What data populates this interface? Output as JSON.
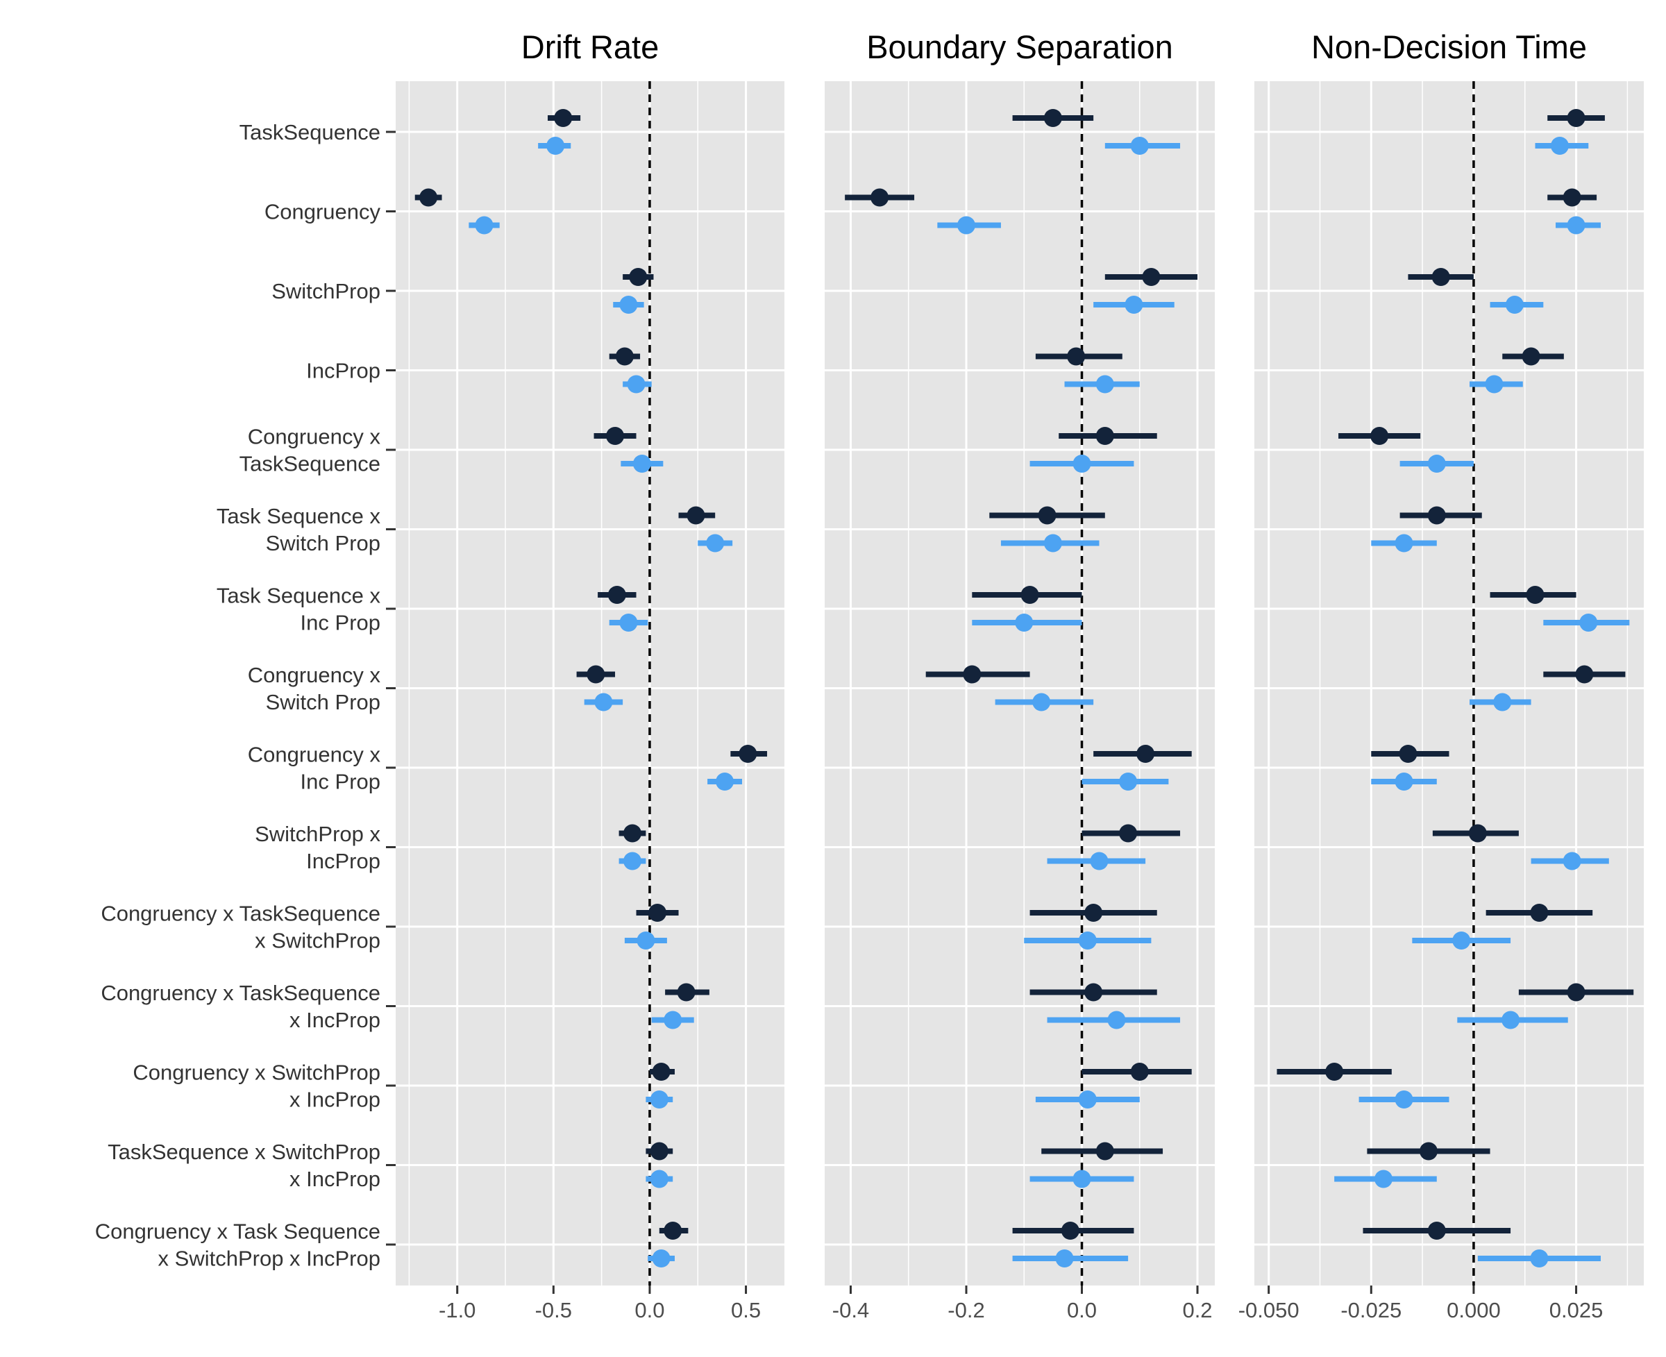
{
  "colors": {
    "dark_series": "#13233a",
    "light_series": "#4da3f2",
    "panel_background": "#e5e5e5",
    "grid_line": "#ffffff",
    "zero_line": "#000000"
  },
  "chart_data": {
    "type": "forest",
    "terms": [
      [
        "TaskSequence"
      ],
      [
        "Congruency"
      ],
      [
        "SwitchProp"
      ],
      [
        "IncProp"
      ],
      [
        "Congruency x",
        "TaskSequence"
      ],
      [
        "Task Sequence x",
        "Switch Prop"
      ],
      [
        "Task Sequence x",
        "Inc Prop"
      ],
      [
        "Congruency x",
        "Switch Prop"
      ],
      [
        "Congruency x",
        "Inc Prop"
      ],
      [
        "SwitchProp x ",
        "IncProp"
      ],
      [
        "Congruency x TaskSequence ",
        "x SwitchProp"
      ],
      [
        "Congruency x TaskSequence ",
        "x IncProp"
      ],
      [
        "Congruency x SwitchProp ",
        "x IncProp"
      ],
      [
        "TaskSequence x SwitchProp ",
        "x IncProp"
      ],
      [
        "Congruency x Task Sequence ",
        "x SwitchProp x IncProp"
      ]
    ],
    "panels": [
      {
        "title": "Drift Rate",
        "xlim": [
          -1.32,
          0.7
        ],
        "ticks": [
          -1.0,
          -0.5,
          0.0,
          0.5
        ],
        "tick_labels": [
          "-1.0",
          "-0.5",
          "0.0",
          "0.5"
        ],
        "minor_ticks": [
          -1.25,
          -0.75,
          -0.25,
          0.25
        ],
        "series": [
          {
            "estimate": [
              -0.45,
              -1.15,
              -0.06,
              -0.13,
              -0.18,
              0.24,
              -0.17,
              -0.28,
              0.51,
              -0.09,
              0.04,
              0.19,
              0.06,
              0.05,
              0.12
            ],
            "ci_low": [
              -0.53,
              -1.22,
              -0.14,
              -0.21,
              -0.29,
              0.15,
              -0.27,
              -0.38,
              0.42,
              -0.16,
              -0.07,
              0.08,
              0.0,
              -0.02,
              0.05
            ],
            "ci_high": [
              -0.36,
              -1.08,
              0.02,
              -0.05,
              -0.07,
              0.34,
              -0.07,
              -0.18,
              0.61,
              -0.02,
              0.15,
              0.31,
              0.13,
              0.12,
              0.2
            ]
          },
          {
            "estimate": [
              -0.49,
              -0.86,
              -0.11,
              -0.07,
              -0.04,
              0.34,
              -0.11,
              -0.24,
              0.39,
              -0.09,
              -0.02,
              0.12,
              0.05,
              0.05,
              0.06
            ],
            "ci_low": [
              -0.58,
              -0.94,
              -0.19,
              -0.14,
              -0.15,
              0.25,
              -0.21,
              -0.34,
              0.3,
              -0.16,
              -0.13,
              0.01,
              -0.02,
              -0.02,
              -0.01
            ],
            "ci_high": [
              -0.41,
              -0.78,
              -0.03,
              0.01,
              0.07,
              0.43,
              -0.01,
              -0.14,
              0.48,
              -0.02,
              0.09,
              0.23,
              0.12,
              0.12,
              0.13
            ]
          }
        ]
      },
      {
        "title": "Boundary Separation",
        "xlim": [
          -0.445,
          0.23
        ],
        "ticks": [
          -0.4,
          -0.2,
          0.0,
          0.2
        ],
        "tick_labels": [
          "-0.4",
          "-0.2",
          "0.0",
          "0.2"
        ],
        "minor_ticks": [
          -0.3,
          -0.1,
          0.1
        ],
        "series": [
          {
            "estimate": [
              -0.05,
              -0.35,
              0.12,
              -0.01,
              0.04,
              -0.06,
              -0.09,
              -0.19,
              0.11,
              0.08,
              0.02,
              0.02,
              0.1,
              0.04,
              -0.02
            ],
            "ci_low": [
              -0.12,
              -0.41,
              0.04,
              -0.08,
              -0.04,
              -0.16,
              -0.19,
              -0.27,
              0.02,
              0.0,
              -0.09,
              -0.09,
              0.0,
              -0.07,
              -0.12
            ],
            "ci_high": [
              0.02,
              -0.29,
              0.2,
              0.07,
              0.13,
              0.04,
              0.0,
              -0.09,
              0.19,
              0.17,
              0.13,
              0.13,
              0.19,
              0.14,
              0.09
            ]
          },
          {
            "estimate": [
              0.1,
              -0.2,
              0.09,
              0.04,
              0.0,
              -0.05,
              -0.1,
              -0.07,
              0.08,
              0.03,
              0.01,
              0.06,
              0.01,
              0.0,
              -0.03
            ],
            "ci_low": [
              0.04,
              -0.25,
              0.02,
              -0.03,
              -0.09,
              -0.14,
              -0.19,
              -0.15,
              0.0,
              -0.06,
              -0.1,
              -0.06,
              -0.08,
              -0.09,
              -0.12
            ],
            "ci_high": [
              0.17,
              -0.14,
              0.16,
              0.1,
              0.09,
              0.03,
              0.0,
              0.02,
              0.15,
              0.11,
              0.12,
              0.17,
              0.1,
              0.09,
              0.08
            ]
          }
        ]
      },
      {
        "title": "Non-Decision Time",
        "xlim": [
          -0.0535,
          0.0415
        ],
        "ticks": [
          -0.05,
          -0.025,
          0.0,
          0.025
        ],
        "tick_labels": [
          "-0.050",
          "-0.025",
          "0.000",
          "0.025"
        ],
        "minor_ticks": [
          -0.0375,
          -0.0125,
          0.0125,
          0.0375
        ],
        "series": [
          {
            "estimate": [
              0.025,
              0.024,
              -0.008,
              0.014,
              -0.023,
              -0.009,
              0.015,
              0.027,
              -0.016,
              0.001,
              0.016,
              0.025,
              -0.034,
              -0.011,
              -0.009
            ],
            "ci_low": [
              0.018,
              0.018,
              -0.016,
              0.007,
              -0.033,
              -0.018,
              0.004,
              0.017,
              -0.025,
              -0.01,
              0.003,
              0.011,
              -0.048,
              -0.026,
              -0.027
            ],
            "ci_high": [
              0.032,
              0.03,
              0.0,
              0.022,
              -0.013,
              0.002,
              0.025,
              0.037,
              -0.006,
              0.011,
              0.029,
              0.039,
              -0.02,
              0.004,
              0.009
            ]
          },
          {
            "estimate": [
              0.021,
              0.025,
              0.01,
              0.005,
              -0.009,
              -0.017,
              0.028,
              0.007,
              -0.017,
              0.024,
              -0.003,
              0.009,
              -0.017,
              -0.022,
              0.016
            ],
            "ci_low": [
              0.015,
              0.02,
              0.004,
              -0.001,
              -0.018,
              -0.025,
              0.017,
              -0.001,
              -0.025,
              0.014,
              -0.015,
              -0.004,
              -0.028,
              -0.034,
              0.001
            ],
            "ci_high": [
              0.028,
              0.031,
              0.017,
              0.012,
              0.0,
              -0.009,
              0.038,
              0.014,
              -0.009,
              0.033,
              0.009,
              0.023,
              -0.006,
              -0.009,
              0.031
            ]
          }
        ]
      }
    ]
  }
}
